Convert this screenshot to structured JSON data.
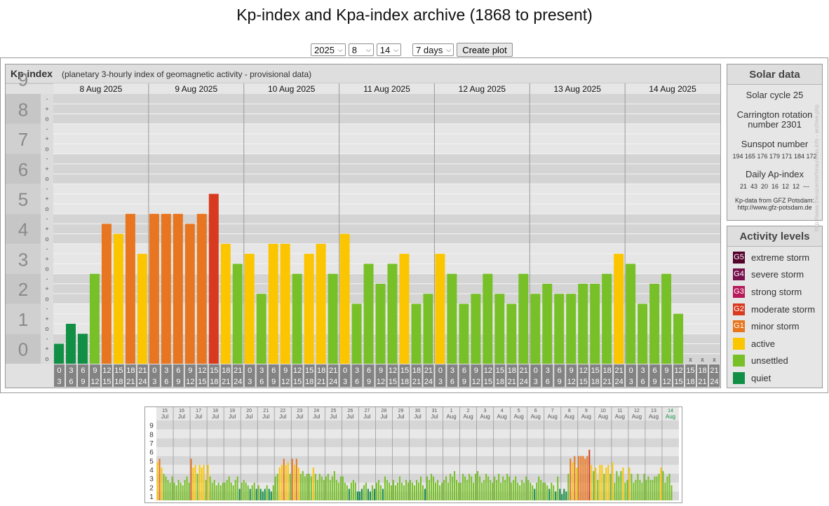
{
  "page": {
    "title": "Kp-index and Kpa-index archive (1868 to present)"
  },
  "controls": {
    "year": "2025",
    "month": "8",
    "day": "14",
    "range": "7 days",
    "button_label": "Create plot"
  },
  "colors": {
    "quiet": "#118f45",
    "unsettled": "#77c028",
    "active": "#fbc500",
    "G1": "#e8751f",
    "G2": "#d83a1f",
    "G3": "#b7195a",
    "G4": "#77114c",
    "G5": "#55002b"
  },
  "chart_data": {
    "type": "bar",
    "title": "Kp-index",
    "subtitle": "(planetary 3-hourly index of geomagnetic activity - provisional data)",
    "ylim": [
      0,
      9
    ],
    "y_ticks": [
      "0",
      "1",
      "2",
      "3",
      "4",
      "5",
      "6",
      "7",
      "8",
      "9"
    ],
    "minor_tick_labels": [
      "o",
      "+",
      "-"
    ],
    "days": [
      "8 Aug 2025",
      "9 Aug 2025",
      "10 Aug 2025",
      "11 Aug 2025",
      "12 Aug 2025",
      "13 Aug 2025",
      "14 Aug 2025"
    ],
    "hour_ranges_top": [
      "0",
      "3",
      "6",
      "9",
      "12",
      "15",
      "18",
      "21"
    ],
    "hour_ranges_bottom": [
      "3",
      "6",
      "9",
      "12",
      "15",
      "18",
      "21",
      "24"
    ],
    "values": [
      [
        0.667,
        1.333,
        1.0,
        3.0,
        4.667,
        4.333,
        5.0,
        3.667
      ],
      [
        5.0,
        5.0,
        5.0,
        4.667,
        5.0,
        5.667,
        4.0,
        3.333
      ],
      [
        3.667,
        2.333,
        4.0,
        4.0,
        3.0,
        3.667,
        4.0,
        3.0
      ],
      [
        4.333,
        2.0,
        3.333,
        2.667,
        3.333,
        3.667,
        2.0,
        2.333
      ],
      [
        3.667,
        3.0,
        2.0,
        2.333,
        3.0,
        2.333,
        2.0,
        3.0
      ],
      [
        2.333,
        2.667,
        2.333,
        2.333,
        2.667,
        2.667,
        3.0,
        3.667
      ],
      [
        3.333,
        2.0,
        2.667,
        3.0,
        1.667,
        null,
        null,
        null
      ]
    ],
    "missing_mark": "x"
  },
  "solar": {
    "title": "Solar data",
    "cycle": "Solar cycle 25",
    "carrington_1": "Carrington rotation",
    "carrington_2": "number 2301",
    "sunspot_label": "Sunspot number",
    "sunspot_values": "194 165 176 179 171 184 172",
    "ap_label": "Daily Ap-index",
    "ap_values": "21  43  20  16  12  12  ---",
    "credit_1": "Kp-data from GFZ Potsdam:",
    "credit_2": "http://www.gfz-potsdam.de"
  },
  "activity": {
    "title": "Activity levels",
    "levels": [
      {
        "code": "G5",
        "label": "extreme storm",
        "color": "#55002b"
      },
      {
        "code": "G4",
        "label": "severe storm",
        "color": "#77114c"
      },
      {
        "code": "G3",
        "label": "strong storm",
        "color": "#b7195a"
      },
      {
        "code": "G2",
        "label": "moderate storm",
        "color": "#d83a1f"
      },
      {
        "code": "G1",
        "label": "minor storm",
        "color": "#e8751f"
      },
      {
        "code": "",
        "label": "active",
        "color": "#fbc500"
      },
      {
        "code": "",
        "label": "unsettled",
        "color": "#77c028"
      },
      {
        "code": "",
        "label": "quiet",
        "color": "#118f45"
      }
    ]
  },
  "side_url": "http://www.theuscenterforauroras.info - archive.php",
  "overview": {
    "y_ticks": [
      "1",
      "2",
      "3",
      "4",
      "5",
      "6",
      "7",
      "8",
      "9"
    ],
    "days": [
      {
        "d": "15",
        "m": "Jul"
      },
      {
        "d": "16",
        "m": "Jul"
      },
      {
        "d": "17",
        "m": "Jul"
      },
      {
        "d": "18",
        "m": "Jul"
      },
      {
        "d": "19",
        "m": "Jul"
      },
      {
        "d": "20",
        "m": "Jul"
      },
      {
        "d": "21",
        "m": "Jul"
      },
      {
        "d": "22",
        "m": "Jul"
      },
      {
        "d": "23",
        "m": "Jul"
      },
      {
        "d": "24",
        "m": "Jul"
      },
      {
        "d": "25",
        "m": "Jul"
      },
      {
        "d": "26",
        "m": "Jul"
      },
      {
        "d": "27",
        "m": "Jul"
      },
      {
        "d": "28",
        "m": "Jul"
      },
      {
        "d": "29",
        "m": "Jul"
      },
      {
        "d": "30",
        "m": "Jul"
      },
      {
        "d": "31",
        "m": "Jul"
      },
      {
        "d": "1",
        "m": "Aug"
      },
      {
        "d": "2",
        "m": "Aug"
      },
      {
        "d": "3",
        "m": "Aug"
      },
      {
        "d": "4",
        "m": "Aug"
      },
      {
        "d": "5",
        "m": "Aug"
      },
      {
        "d": "6",
        "m": "Aug"
      },
      {
        "d": "7",
        "m": "Aug"
      },
      {
        "d": "8",
        "m": "Aug"
      },
      {
        "d": "9",
        "m": "Aug"
      },
      {
        "d": "10",
        "m": "Aug"
      },
      {
        "d": "11",
        "m": "Aug"
      },
      {
        "d": "12",
        "m": "Aug"
      },
      {
        "d": "13",
        "m": "Aug"
      },
      {
        "d": "14",
        "m": "Aug"
      }
    ],
    "values": [
      [
        4.3,
        4.7,
        3.7,
        3.0,
        2.7,
        2.3,
        2.0,
        2.7
      ],
      [
        2.0,
        1.7,
        2.3,
        2.0,
        1.7,
        2.3,
        2.7,
        2.0
      ],
      [
        4.7,
        3.7,
        4.0,
        3.0,
        4.0,
        3.7,
        4.0,
        2.3
      ],
      [
        4.0,
        2.7,
        2.0,
        2.3,
        1.7,
        2.0,
        1.7,
        2.0
      ],
      [
        2.0,
        2.3,
        2.7,
        2.0,
        1.7,
        2.3,
        2.7,
        1.3
      ],
      [
        2.0,
        2.3,
        2.0,
        1.7,
        1.3,
        1.7,
        2.0,
        1.3
      ],
      [
        1.7,
        1.3,
        1.0,
        1.3,
        1.7,
        1.3,
        1.0,
        1.7
      ],
      [
        2.7,
        3.0,
        3.7,
        4.0,
        4.7,
        4.0,
        4.3,
        3.0
      ],
      [
        4.7,
        4.0,
        4.7,
        3.7,
        3.0,
        3.3,
        2.7,
        3.0
      ],
      [
        3.0,
        2.7,
        3.7,
        3.0,
        2.3,
        3.0,
        2.7,
        2.3
      ],
      [
        2.7,
        3.0,
        2.3,
        2.7,
        3.3,
        2.3,
        2.0,
        2.7
      ],
      [
        2.7,
        2.0,
        1.7,
        1.3,
        2.0,
        2.3,
        2.0,
        1.0
      ],
      [
        1.0,
        1.3,
        1.7,
        2.0,
        1.3,
        1.0,
        1.7,
        1.3
      ],
      [
        2.0,
        2.3,
        1.7,
        1.3,
        2.7,
        2.3,
        2.0,
        1.7
      ],
      [
        2.3,
        1.7,
        2.0,
        2.7,
        2.0,
        1.7,
        2.3,
        2.0
      ],
      [
        2.3,
        2.0,
        1.7,
        2.3,
        2.0,
        2.7,
        1.7,
        1.3
      ],
      [
        2.7,
        2.3,
        3.0,
        2.7,
        2.0,
        2.3,
        1.7,
        2.0
      ],
      [
        2.3,
        2.7,
        2.0,
        3.0,
        2.7,
        3.3,
        2.3,
        2.0
      ],
      [
        2.0,
        3.0,
        2.7,
        2.3,
        3.0,
        2.7,
        2.0,
        3.0
      ],
      [
        3.3,
        2.7,
        2.0,
        2.3,
        3.0,
        2.7,
        2.3,
        2.0
      ],
      [
        2.7,
        2.3,
        3.0,
        2.0,
        2.7,
        2.3,
        3.0,
        2.7
      ],
      [
        2.0,
        2.3,
        2.7,
        2.0,
        1.7,
        2.3,
        2.0,
        2.7
      ],
      [
        2.3,
        2.0,
        1.7,
        1.3,
        2.0,
        2.7,
        2.3,
        2.0
      ],
      [
        2.0,
        1.7,
        1.3,
        2.0,
        1.7,
        1.0,
        2.7,
        1.3
      ],
      [
        0.7,
        1.3,
        1.0,
        3.0,
        4.7,
        4.3,
        5.0,
        3.7
      ],
      [
        5.0,
        5.0,
        5.0,
        4.7,
        5.0,
        5.7,
        4.0,
        3.3
      ],
      [
        3.7,
        2.3,
        4.0,
        4.0,
        3.0,
        3.7,
        4.0,
        3.0
      ],
      [
        4.3,
        2.0,
        3.3,
        2.7,
        3.3,
        3.7,
        2.0,
        2.3
      ],
      [
        3.7,
        3.0,
        2.0,
        2.3,
        3.0,
        2.3,
        2.0,
        3.0
      ],
      [
        2.3,
        2.7,
        2.3,
        2.3,
        2.7,
        2.7,
        3.0,
        3.7
      ],
      [
        3.3,
        2.0,
        2.7,
        3.0,
        1.7,
        null,
        null,
        null
      ]
    ]
  }
}
